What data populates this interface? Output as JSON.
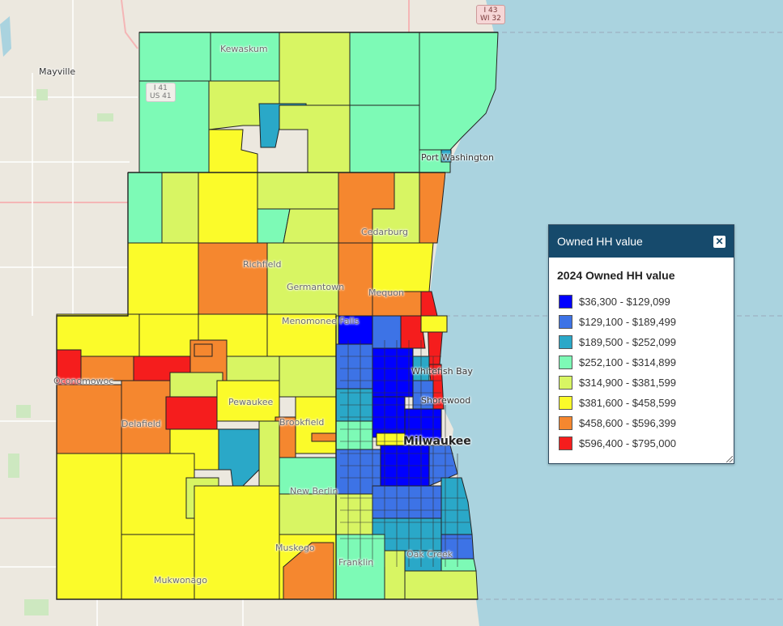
{
  "map": {
    "lake_color": "#aad3df",
    "land_color": "#e9e5dc",
    "places": [
      "Mayville",
      "Kewaskum",
      "Port Washington",
      "Richfield",
      "Germantown",
      "Cedarburg",
      "Mequon",
      "Menomonee Falls",
      "Whitefish Bay",
      "Shorewood",
      "Milwaukee",
      "Pewaukee",
      "Brookfield",
      "New Berlin",
      "Franklin",
      "Oak Creek",
      "Muskego",
      "Oconomowoc",
      "Delafield",
      "Mukwonago"
    ],
    "shields": [
      "I 43",
      "WI 32",
      "I 41",
      "US 41"
    ]
  },
  "legend": {
    "title": "Owned HH value",
    "subtitle": "2024 Owned HH value",
    "items": [
      {
        "label": "$36,300 - $129,099",
        "color": "#0000ff"
      },
      {
        "label": "$129,100 - $189,499",
        "color": "#3d73e6"
      },
      {
        "label": "$189,500 - $252,099",
        "color": "#2aa8c8"
      },
      {
        "label": "$252,100 - $314,899",
        "color": "#7dfab6"
      },
      {
        "label": "$314,900 - $381,599",
        "color": "#d8f563"
      },
      {
        "label": "$381,600 - $458,599",
        "color": "#fbfb2a"
      },
      {
        "label": "$458,600 - $596,399",
        "color": "#f5872f"
      },
      {
        "label": "$596,400 - $795,000",
        "color": "#f51d1d"
      }
    ]
  }
}
